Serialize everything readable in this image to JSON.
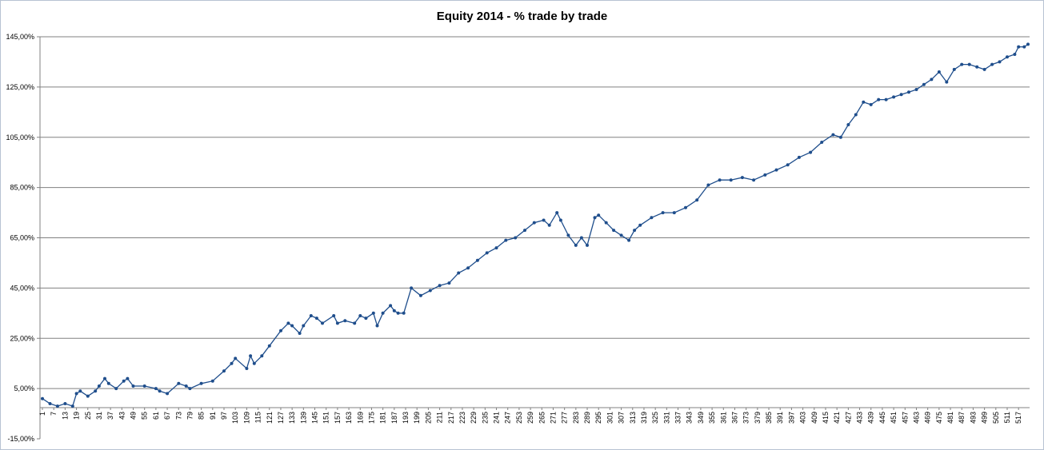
{
  "chart_data": {
    "type": "line",
    "title": "Equity 2014 - % trade by trade",
    "xlabel": "",
    "ylabel": "",
    "ylim": [
      -15,
      145
    ],
    "y_ticks": [
      -15,
      5,
      25,
      45,
      65,
      85,
      105,
      125,
      145
    ],
    "y_tick_labels": [
      "-15,00%",
      "5,00%",
      "25,00%",
      "45,00%",
      "65,00%",
      "85,00%",
      "105,00%",
      "125,00%",
      "145,00%"
    ],
    "x_range": [
      1,
      522
    ],
    "x_ticks": [
      1,
      7,
      13,
      19,
      25,
      31,
      37,
      43,
      49,
      55,
      61,
      67,
      73,
      79,
      85,
      91,
      97,
      103,
      109,
      115,
      121,
      127,
      133,
      139,
      145,
      151,
      157,
      163,
      169,
      175,
      181,
      187,
      193,
      199,
      205,
      211,
      217,
      223,
      229,
      235,
      241,
      247,
      253,
      259,
      265,
      271,
      277,
      283,
      289,
      295,
      301,
      307,
      313,
      319,
      325,
      331,
      337,
      343,
      349,
      355,
      361,
      367,
      373,
      379,
      385,
      391,
      397,
      403,
      409,
      415,
      421,
      427,
      433,
      439,
      445,
      451,
      457,
      463,
      469,
      475,
      481,
      487,
      493,
      499,
      505,
      511,
      517
    ],
    "grid": "horizontal",
    "legend": "none",
    "line_color": "#1f4e8c",
    "marker_color": "#1f4e8c",
    "series": [
      {
        "x": [
          1,
          5,
          9,
          13,
          17,
          19,
          21,
          25,
          29,
          31,
          34,
          36,
          40,
          44,
          46,
          49,
          55,
          61,
          63,
          67,
          73,
          77,
          79,
          85,
          91,
          97,
          101,
          103,
          109,
          111,
          113,
          117,
          121,
          127,
          131,
          133,
          137,
          139,
          143,
          146,
          149,
          155,
          157,
          161,
          166,
          169,
          172,
          176,
          178,
          181,
          185,
          187,
          189,
          192,
          196,
          201,
          206,
          211,
          216,
          221,
          226,
          231,
          236,
          241,
          246,
          251,
          256,
          261,
          266,
          269,
          273,
          275,
          279,
          283,
          286,
          289,
          293,
          295,
          299,
          303,
          307,
          311,
          314,
          317,
          323,
          329,
          335,
          341,
          347,
          353,
          359,
          365,
          371,
          377,
          383,
          389,
          395,
          401,
          407,
          413,
          419,
          423,
          427,
          431,
          435,
          439,
          443,
          447,
          451,
          455,
          459,
          463,
          467,
          471,
          475,
          479,
          483,
          487,
          491,
          495,
          499,
          503,
          507,
          511,
          515,
          517,
          520,
          522
        ],
        "y": [
          1,
          -1,
          -2,
          -1,
          -2,
          3,
          4,
          2,
          4,
          6,
          9,
          7,
          5,
          8,
          9,
          6,
          6,
          5,
          4,
          3,
          7,
          6,
          5,
          7,
          8,
          12,
          15,
          17,
          13,
          18,
          15,
          18,
          22,
          28,
          31,
          30,
          27,
          30,
          34,
          33,
          31,
          34,
          31,
          32,
          31,
          34,
          33,
          35,
          30,
          35,
          38,
          36,
          35,
          35,
          45,
          42,
          44,
          46,
          47,
          51,
          53,
          56,
          59,
          61,
          64,
          65,
          68,
          71,
          72,
          70,
          75,
          72,
          66,
          62,
          65,
          62,
          73,
          74,
          71,
          68,
          66,
          64,
          68,
          70,
          73,
          75,
          75,
          77,
          80,
          86,
          88,
          88,
          89,
          88,
          90,
          92,
          94,
          97,
          99,
          103,
          106,
          105,
          110,
          114,
          119,
          118,
          120,
          120,
          121,
          122,
          123,
          124,
          126,
          128,
          131,
          127,
          132,
          134,
          134,
          133,
          132,
          134,
          135,
          137,
          138,
          141,
          141,
          142
        ]
      }
    ]
  }
}
